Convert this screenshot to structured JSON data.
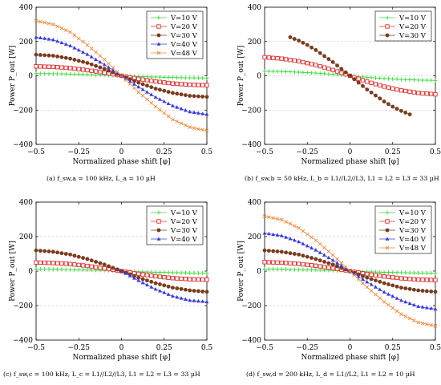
{
  "figure": {
    "captions": [
      "(a) f_sw,a = 100 kHz, L_a = 10 µH",
      "(b) f_sw,b = 50 kHz, L_b = L1//L2//L3, L1 = L2 = L3 = 33 µH",
      "(c) f_sw,c = 100 kHz, L_c = L1//L2//L3, L1 = L2 = L3 = 33 µH",
      "(d) f_sw,d = 200 kHz, L_d = L1//L2, L1 = L2 = 10 µH"
    ]
  },
  "series_styles": {
    "V=10 V": {
      "color": "#33dd33",
      "marker": "plus"
    },
    "V=20 V": {
      "color": "#e03030",
      "marker": "square"
    },
    "V=30 V": {
      "color": "#7a3b1c",
      "marker": "dot"
    },
    "V=40 V": {
      "color": "#3a3ae0",
      "marker": "triangle"
    },
    "V=48 V": {
      "color": "#f08a3a",
      "marker": "x"
    }
  },
  "chart_data": [
    {
      "type": "line",
      "xlabel": "Normalized phase shift [φ]",
      "ylabel": "Power P_out [W]",
      "xlim": [
        -0.5,
        0.5
      ],
      "ylim": [
        -400,
        400
      ],
      "xticks": [
        "−0.5",
        "−0.25",
        "0",
        "0.25",
        "0.5"
      ],
      "yticks": [
        "400",
        "200",
        "0",
        "−200",
        "−400"
      ],
      "grid": "dashed horizontal",
      "legend": "top-right",
      "x": [
        -0.5,
        -0.4,
        -0.3,
        -0.2,
        -0.1,
        0,
        0.1,
        0.2,
        0.3,
        0.4,
        0.5
      ],
      "series": [
        {
          "name": "V=10 V",
          "values": [
            13,
            12,
            10,
            7,
            4,
            0,
            -4,
            -7,
            -10,
            -12,
            -13
          ]
        },
        {
          "name": "V=20 V",
          "values": [
            55,
            52,
            45,
            33,
            18,
            0,
            -18,
            -33,
            -45,
            -52,
            -55
          ]
        },
        {
          "name": "V=30 V",
          "values": [
            123,
            117,
            100,
            75,
            40,
            0,
            -40,
            -75,
            -100,
            -117,
            -123
          ]
        },
        {
          "name": "V=40 V",
          "values": [
            225,
            210,
            175,
            125,
            65,
            0,
            -65,
            -125,
            -175,
            -210,
            -225
          ]
        },
        {
          "name": "V=48 V",
          "values": [
            320,
            300,
            255,
            180,
            95,
            0,
            -95,
            -180,
            -255,
            -300,
            -320
          ]
        }
      ]
    },
    {
      "type": "line",
      "xlabel": "Normalized phase shift [φ]",
      "ylabel": "Power P_out [W]",
      "xlim": [
        -0.5,
        0.5
      ],
      "ylim": [
        -400,
        400
      ],
      "xticks": [
        "−0.5",
        "−0.25",
        "0",
        "0.25",
        "0.5"
      ],
      "yticks": [
        "400",
        "200",
        "0",
        "−200",
        "−400"
      ],
      "grid": "dashed horizontal",
      "legend": "top-right",
      "series": [
        {
          "name": "V=10 V",
          "x": [
            -0.5,
            -0.4,
            -0.3,
            -0.2,
            -0.1,
            0,
            0.1,
            0.2,
            0.3,
            0.4,
            0.5
          ],
          "values": [
            27,
            25,
            21,
            16,
            9,
            0,
            -9,
            -16,
            -21,
            -25,
            -27
          ]
        },
        {
          "name": "V=20 V",
          "x": [
            -0.5,
            -0.4,
            -0.3,
            -0.2,
            -0.1,
            0,
            0.1,
            0.2,
            0.3,
            0.4,
            0.5
          ],
          "values": [
            108,
            100,
            85,
            63,
            34,
            0,
            -34,
            -63,
            -85,
            -100,
            -108
          ]
        },
        {
          "name": "V=30 V",
          "x": [
            -0.35,
            -0.3,
            -0.25,
            -0.2,
            -0.15,
            -0.1,
            -0.05,
            0,
            0.05,
            0.1,
            0.15,
            0.2,
            0.25,
            0.3,
            0.35
          ],
          "values": [
            225,
            205,
            180,
            150,
            115,
            80,
            40,
            0,
            -40,
            -80,
            -115,
            -150,
            -180,
            -205,
            -225
          ]
        }
      ]
    },
    {
      "type": "line",
      "xlabel": "Normalized phase shift [φ]",
      "ylabel": "Power P_out [W]",
      "xlim": [
        -0.5,
        0.5
      ],
      "ylim": [
        -400,
        400
      ],
      "xticks": [
        "−0.5",
        "−0.25",
        "0",
        "0.25",
        "0.5"
      ],
      "yticks": [
        "400",
        "200",
        "0",
        "−200",
        "−400"
      ],
      "grid": "dashed horizontal",
      "legend": "top-right",
      "x": [
        -0.5,
        -0.4,
        -0.3,
        -0.2,
        -0.1,
        0,
        0.1,
        0.2,
        0.3,
        0.4,
        0.5
      ],
      "series": [
        {
          "name": "V=10 V",
          "values": [
            12,
            11,
            9,
            7,
            4,
            0,
            -4,
            -7,
            -9,
            -11,
            -12
          ]
        },
        {
          "name": "V=20 V",
          "values": [
            50,
            47,
            41,
            30,
            16,
            0,
            -16,
            -30,
            -41,
            -47,
            -50
          ]
        },
        {
          "name": "V=30 V",
          "values": [
            120,
            112,
            96,
            70,
            38,
            0,
            -38,
            -70,
            -96,
            -112,
            -120
          ]
        },
        {
          "name": "V=40 V",
          "values": [
            null,
            null,
            null,
            null,
            null,
            0,
            -55,
            -105,
            -145,
            -170,
            -178
          ]
        }
      ]
    },
    {
      "type": "line",
      "xlabel": "Normalized phase shift [φ]",
      "ylabel": "Power P_out [W]",
      "xlim": [
        -0.5,
        0.5
      ],
      "ylim": [
        -400,
        400
      ],
      "xticks": [
        "−0.5",
        "−0.25",
        "0",
        "0.25",
        "0.5"
      ],
      "yticks": [
        "400",
        "200",
        "0",
        "−200",
        "−400"
      ],
      "grid": "dashed horizontal",
      "legend": "top-right",
      "x": [
        -0.5,
        -0.4,
        -0.3,
        -0.2,
        -0.1,
        0,
        0.1,
        0.2,
        0.3,
        0.4,
        0.5
      ],
      "series": [
        {
          "name": "V=10 V",
          "values": [
            12,
            11,
            9,
            7,
            4,
            0,
            -4,
            -7,
            -9,
            -11,
            -12
          ]
        },
        {
          "name": "V=20 V",
          "values": [
            52,
            49,
            42,
            31,
            17,
            0,
            -17,
            -31,
            -42,
            -49,
            -52
          ]
        },
        {
          "name": "V=30 V",
          "values": [
            120,
            112,
            96,
            70,
            38,
            0,
            -38,
            -70,
            -96,
            -112,
            -120
          ]
        },
        {
          "name": "V=40 V",
          "values": [
            220,
            205,
            170,
            122,
            63,
            0,
            -63,
            -122,
            -170,
            -205,
            -220
          ]
        },
        {
          "name": "V=48 V",
          "values": [
            318,
            298,
            250,
            178,
            93,
            0,
            -93,
            -178,
            -250,
            -298,
            -318
          ]
        }
      ]
    }
  ]
}
